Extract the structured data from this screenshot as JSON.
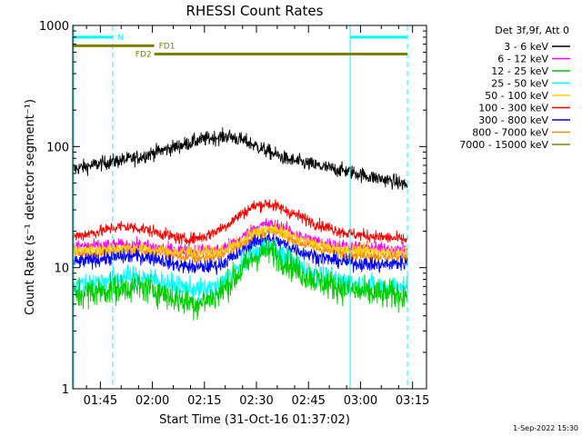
{
  "chart_data": {
    "type": "line",
    "title": "RHESSI Count Rates",
    "xlabel": "Start Time (31-Oct-16 01:37:02)",
    "ylabel": "Count Rate (s⁻¹ detector segment⁻¹)",
    "yscale": "log",
    "ylim": [
      1,
      1000
    ],
    "xlim_minutes_after_start": [
      0,
      102
    ],
    "x_ticks": [
      {
        "label": "01:45",
        "minute": 7.97
      },
      {
        "label": "02:00",
        "minute": 22.97
      },
      {
        "label": "02:15",
        "minute": 37.97
      },
      {
        "label": "02:30",
        "minute": 52.97
      },
      {
        "label": "02:45",
        "minute": 67.97
      },
      {
        "label": "03:00",
        "minute": 82.97
      },
      {
        "label": "03:15",
        "minute": 97.97
      }
    ],
    "y_ticks": [
      {
        "label": "1",
        "value": 1
      },
      {
        "label": "10",
        "value": 10
      },
      {
        "label": "100",
        "value": 100
      },
      {
        "label": "1000",
        "value": 1000
      }
    ],
    "legend": {
      "position": "right",
      "title": "Det 3f,9f, Att 0",
      "entries": [
        {
          "label": "3 - 6 keV",
          "color": "#000000"
        },
        {
          "label": "6 - 12 keV",
          "color": "#ff00ff"
        },
        {
          "label": "12 - 25 keV",
          "color": "#00cc00"
        },
        {
          "label": "25 - 50 keV",
          "color": "#00ffff"
        },
        {
          "label": "50 - 100 keV",
          "color": "#ffd000"
        },
        {
          "label": "100 - 300 keV",
          "color": "#ff0000"
        },
        {
          "label": "300 - 800 keV",
          "color": "#0000ff"
        },
        {
          "label": "800 - 7000 keV",
          "color": "#ff8800"
        },
        {
          "label": "7000 - 15000 keV",
          "color": "#808000"
        }
      ]
    },
    "series": [
      {
        "name": "3 - 6 keV",
        "color": "#000000",
        "noise": 0.06,
        "x": [
          0,
          10,
          18,
          24,
          30,
          36,
          40,
          45,
          50,
          56,
          62,
          68,
          74,
          80,
          86,
          92,
          96.5
        ],
        "y": [
          65,
          74,
          80,
          90,
          100,
          112,
          118,
          122,
          110,
          92,
          78,
          72,
          66,
          62,
          56,
          52,
          48
        ]
      },
      {
        "name": "800 - 7000 keV",
        "color": "#ff8800",
        "noise": 0.05,
        "x": [
          0,
          10,
          18,
          24,
          30,
          36,
          42,
          48,
          52,
          56,
          60,
          66,
          72,
          80,
          88,
          96.5
        ],
        "y": [
          13,
          13.5,
          14,
          13.5,
          12.5,
          12,
          12.5,
          15,
          18,
          20,
          19,
          16,
          14,
          13,
          12.5,
          12.5
        ]
      },
      {
        "name": "6 - 12 keV",
        "color": "#ff00ff",
        "noise": 0.05,
        "x": [
          0,
          18,
          30,
          42,
          48,
          52,
          56,
          60,
          66,
          72,
          80,
          96.5
        ],
        "y": [
          15,
          15.5,
          14,
          14,
          17,
          21,
          23,
          22,
          18,
          16,
          15,
          14
        ]
      },
      {
        "name": "50 - 100 keV",
        "color": "#ffd000",
        "noise": 0.05,
        "x": [
          0,
          18,
          30,
          42,
          48,
          52,
          56,
          60,
          66,
          72,
          80,
          96.5
        ],
        "y": [
          14,
          14.5,
          13.5,
          13.5,
          16,
          19,
          21,
          20,
          17,
          15,
          14,
          13.5
        ]
      },
      {
        "name": "100 - 300 keV",
        "color": "#ff0000",
        "noise": 0.05,
        "x": [
          0,
          8,
          14,
          20,
          26,
          32,
          38,
          44,
          48,
          52,
          56,
          60,
          66,
          72,
          80,
          88,
          96.5
        ],
        "y": [
          18,
          20,
          22,
          21,
          19,
          17,
          18,
          22,
          27,
          32,
          34,
          31,
          26,
          22,
          19,
          18,
          17
        ]
      },
      {
        "name": "300 - 800 keV",
        "color": "#0000ff",
        "noise": 0.06,
        "x": [
          0,
          10,
          18,
          24,
          30,
          36,
          42,
          48,
          52,
          56,
          60,
          66,
          72,
          80,
          88,
          96.5
        ],
        "y": [
          11,
          12,
          12.5,
          12,
          10.5,
          10,
          10.5,
          13,
          16,
          17.5,
          16,
          13.5,
          12,
          11,
          10.5,
          11
        ]
      },
      {
        "name": "25 - 50 keV",
        "color": "#00ffff",
        "noise": 0.09,
        "x": [
          0,
          10,
          18,
          24,
          30,
          36,
          42,
          48,
          52,
          56,
          60,
          66,
          72,
          80,
          88,
          96.5
        ],
        "y": [
          7,
          8,
          8.5,
          8,
          7,
          6.5,
          7,
          10,
          13,
          15,
          13,
          10,
          8.5,
          7.5,
          7,
          7
        ]
      },
      {
        "name": "12 - 25 keV",
        "color": "#00cc00",
        "noise": 0.12,
        "x": [
          0,
          10,
          18,
          24,
          30,
          36,
          42,
          48,
          52,
          56,
          60,
          66,
          72,
          80,
          88,
          96.5
        ],
        "y": [
          6,
          6.5,
          7,
          6.5,
          5.5,
          5,
          6,
          9,
          12,
          14,
          12,
          9,
          7.5,
          6.5,
          6,
          6
        ]
      }
    ],
    "attenuator_bars": [
      {
        "label": "N",
        "color": "#00ffff",
        "x_start": 0,
        "x_end": 11.5,
        "value": 800
      },
      {
        "label": "FD1",
        "color": "#808000",
        "x_start": 0,
        "x_end": 23.5,
        "value": 680
      },
      {
        "label": "FD2",
        "color": "#808000",
        "x_start": 23.5,
        "x_end": 96.5,
        "value": 580
      },
      {
        "label": "",
        "color": "#00ffff",
        "x_start": 80,
        "x_end": 96.5,
        "value": 800
      }
    ],
    "vertical_markers": [
      {
        "minute": 0.3,
        "style": "solid",
        "color": "#00ffff"
      },
      {
        "minute": 11.5,
        "style": "dashed",
        "color": "#00ffff"
      },
      {
        "minute": 80,
        "style": "solid",
        "color": "#00ffff"
      },
      {
        "minute": 96.5,
        "style": "dashed",
        "color": "#00ffff"
      }
    ]
  },
  "footer": {
    "timestamp": "1-Sep-2022 15:30"
  }
}
